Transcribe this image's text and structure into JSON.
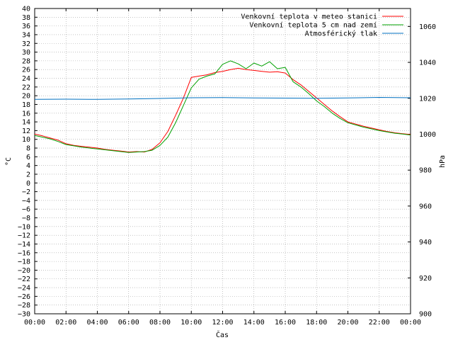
{
  "chart_data": {
    "type": "line",
    "xlabel": "Čas",
    "ylabel": "°C",
    "y2label": "hPa",
    "xlim": [
      0,
      24
    ],
    "ylim": [
      -30,
      40
    ],
    "y2lim": [
      900,
      1070
    ],
    "grid": true,
    "legend_position": "top-right",
    "x_ticks": [
      "00:00",
      "02:00",
      "04:00",
      "06:00",
      "08:00",
      "10:00",
      "12:00",
      "14:00",
      "16:00",
      "18:00",
      "20:00",
      "22:00",
      "00:00"
    ],
    "y_ticks": [
      -30,
      -28,
      -26,
      -24,
      -22,
      -20,
      -18,
      -16,
      -14,
      -12,
      -10,
      -8,
      -6,
      -4,
      -2,
      0,
      2,
      4,
      6,
      8,
      10,
      12,
      14,
      16,
      18,
      20,
      22,
      24,
      26,
      28,
      30,
      32,
      34,
      36,
      38,
      40
    ],
    "y2_ticks": [
      900,
      920,
      940,
      960,
      980,
      1000,
      1020,
      1040,
      1060
    ],
    "series": [
      {
        "name": "Venkovní teplota v meteo stanici",
        "color": "#ff0000",
        "axis": "left",
        "x": [
          0,
          0.5,
          1,
          1.5,
          2,
          2.5,
          3,
          3.5,
          4,
          4.5,
          5,
          5.5,
          6,
          6.5,
          7,
          7.5,
          8,
          8.5,
          9,
          9.5,
          10,
          10.5,
          11,
          11.5,
          12,
          12.5,
          13,
          13.5,
          14,
          14.5,
          15,
          15.5,
          16,
          16.5,
          17,
          17.5,
          18,
          18.5,
          19,
          19.5,
          20,
          20.5,
          21,
          21.5,
          22,
          22.5,
          23,
          23.5,
          24
        ],
        "y": [
          11.2,
          10.8,
          10.3,
          9.8,
          9.0,
          8.6,
          8.4,
          8.2,
          8.0,
          7.7,
          7.5,
          7.3,
          7.1,
          7.2,
          7.1,
          7.7,
          9.2,
          11.8,
          15.5,
          19.5,
          24.2,
          24.5,
          24.8,
          25.3,
          25.6,
          26.0,
          26.3,
          26.0,
          25.8,
          25.6,
          25.4,
          25.5,
          25.2,
          23.7,
          22.5,
          21.0,
          19.5,
          18.0,
          16.5,
          15.2,
          14.0,
          13.5,
          13.0,
          12.6,
          12.2,
          11.8,
          11.5,
          11.3,
          11.1
        ]
      },
      {
        "name": "Venkovní teplota 5 cm nad zemí",
        "color": "#00a000",
        "axis": "left",
        "x": [
          0,
          0.5,
          1,
          1.5,
          2,
          2.5,
          3,
          3.5,
          4,
          4.5,
          5,
          5.5,
          6,
          6.5,
          7,
          7.5,
          8,
          8.5,
          9,
          9.5,
          10,
          10.5,
          11,
          11.5,
          12,
          12.5,
          13,
          13.5,
          14,
          14.5,
          15,
          15.5,
          16,
          16.5,
          17,
          17.5,
          18,
          18.5,
          19,
          19.5,
          20,
          20.5,
          21,
          21.5,
          22,
          22.5,
          23,
          23.5,
          24
        ],
        "y": [
          10.9,
          10.5,
          10.1,
          9.5,
          8.8,
          8.5,
          8.2,
          8.0,
          7.8,
          7.6,
          7.4,
          7.2,
          7.0,
          7.1,
          7.2,
          7.5,
          8.6,
          10.5,
          13.8,
          17.8,
          21.8,
          23.8,
          24.5,
          25.0,
          27.2,
          28.0,
          27.3,
          26.2,
          27.5,
          26.8,
          27.8,
          26.2,
          26.5,
          23.2,
          22.0,
          20.5,
          18.8,
          17.5,
          16.0,
          14.8,
          13.8,
          13.3,
          12.8,
          12.4,
          12.0,
          11.7,
          11.4,
          11.2,
          11.0
        ]
      },
      {
        "name": "Atmosférický tlak",
        "color": "#0070c0",
        "axis": "right",
        "x": [
          0,
          2,
          4,
          6,
          8,
          10,
          12,
          14,
          16,
          18,
          20,
          22,
          24
        ],
        "y": [
          1019.4,
          1019.5,
          1019.4,
          1019.6,
          1019.9,
          1020.3,
          1020.4,
          1020.2,
          1020.1,
          1020.0,
          1020.2,
          1020.5,
          1020.3
        ]
      }
    ]
  }
}
